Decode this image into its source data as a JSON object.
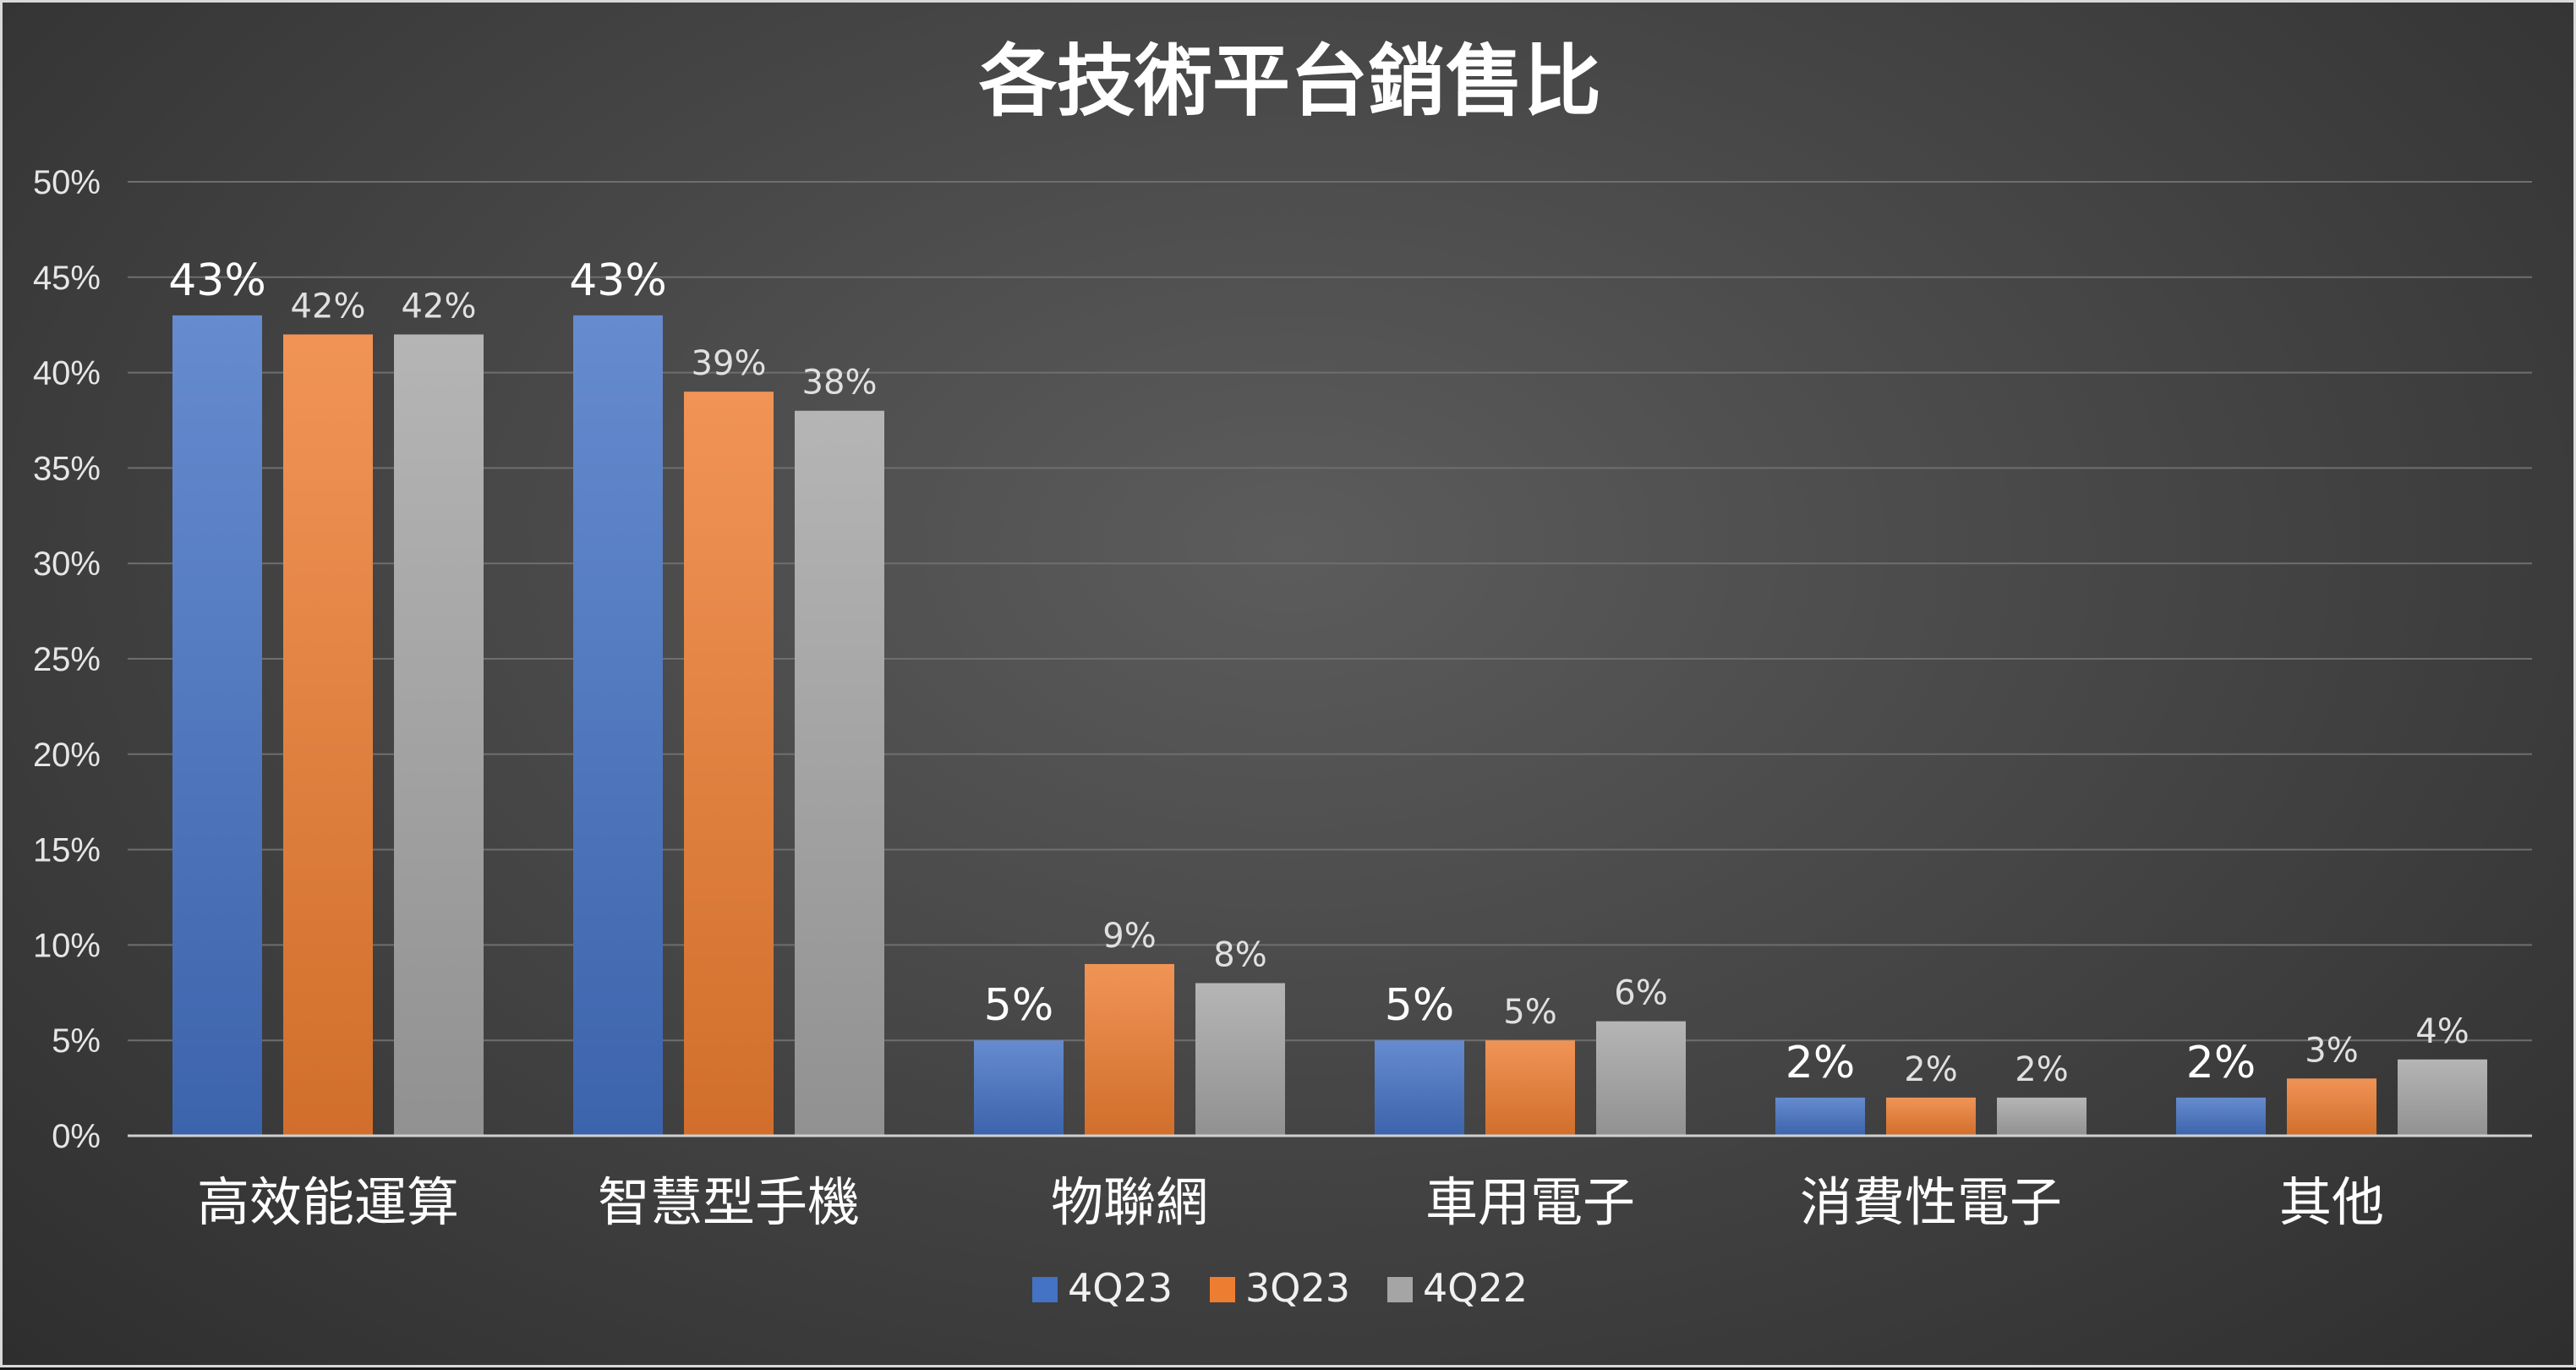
{
  "chart_data": {
    "type": "bar",
    "title": "各技術平台銷售比",
    "categories": [
      "高效能運算",
      "智慧型手機",
      "物聯網",
      "車用電子",
      "消費性電子",
      "其他"
    ],
    "series": [
      {
        "name": "4Q23",
        "values": [
          43,
          43,
          5,
          5,
          2,
          2
        ],
        "color": "#4472c4"
      },
      {
        "name": "3Q23",
        "values": [
          42,
          39,
          9,
          5,
          2,
          3
        ],
        "color": "#ed7d31"
      },
      {
        "name": "4Q22",
        "values": [
          42,
          38,
          8,
          6,
          2,
          4
        ],
        "color": "#a5a5a5"
      }
    ],
    "yticks": [
      "0%",
      "5%",
      "10%",
      "15%",
      "20%",
      "25%",
      "30%",
      "35%",
      "40%",
      "45%",
      "50%"
    ],
    "data_labels": [
      [
        "43%",
        "43%",
        "5%",
        "5%",
        "2%",
        "2%"
      ],
      [
        "42%",
        "39%",
        "9%",
        "5%",
        "2%",
        "3%"
      ],
      [
        "42%",
        "38%",
        "8%",
        "6%",
        "2%",
        "4%"
      ]
    ],
    "ylim": [
      0,
      50
    ],
    "grid": true,
    "legend_position": "bottom"
  }
}
